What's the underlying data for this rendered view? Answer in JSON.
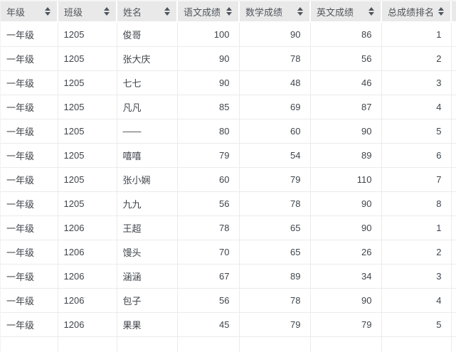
{
  "table": {
    "columns": [
      {
        "key": "grade",
        "label": "年级",
        "align": "left"
      },
      {
        "key": "class",
        "label": "班级",
        "align": "left"
      },
      {
        "key": "name",
        "label": "姓名",
        "align": "left"
      },
      {
        "key": "chinese-score",
        "label": "语文成绩",
        "align": "right"
      },
      {
        "key": "math-score",
        "label": "数学成绩",
        "align": "right"
      },
      {
        "key": "english-score",
        "label": "英文成绩",
        "align": "right"
      },
      {
        "key": "total-rank",
        "label": "总成绩排名",
        "align": "right"
      }
    ],
    "rows": [
      [
        "一年级",
        "1205",
        "俊哥",
        100,
        90,
        86,
        1
      ],
      [
        "一年级",
        "1205",
        "张大庆",
        90,
        78,
        56,
        2
      ],
      [
        "一年级",
        "1205",
        "七七",
        90,
        48,
        46,
        3
      ],
      [
        "一年级",
        "1205",
        "凡凡",
        85,
        69,
        87,
        4
      ],
      [
        "一年级",
        "1205",
        "——",
        80,
        60,
        90,
        5
      ],
      [
        "一年级",
        "1205",
        "嘻嘻",
        79,
        54,
        89,
        6
      ],
      [
        "一年级",
        "1205",
        "张小娴",
        60,
        79,
        110,
        7
      ],
      [
        "一年级",
        "1205",
        "九九",
        56,
        78,
        90,
        8
      ],
      [
        "一年级",
        "1206",
        "王超",
        78,
        65,
        90,
        1
      ],
      [
        "一年级",
        "1206",
        "馒头",
        70,
        65,
        26,
        2
      ],
      [
        "一年级",
        "1206",
        "涵涵",
        67,
        89,
        34,
        3
      ],
      [
        "一年级",
        "1206",
        "包子",
        56,
        78,
        90,
        4
      ],
      [
        "一年级",
        "1206",
        "果果",
        45,
        79,
        79,
        5
      ]
    ],
    "colors": {
      "header_bg": "#e9e9e9",
      "header_text": "#50555b",
      "body_text": "#3f454c",
      "border": "#ebebeb",
      "row_bg": "#ffffff",
      "sort_icon": "#4e565f"
    }
  }
}
